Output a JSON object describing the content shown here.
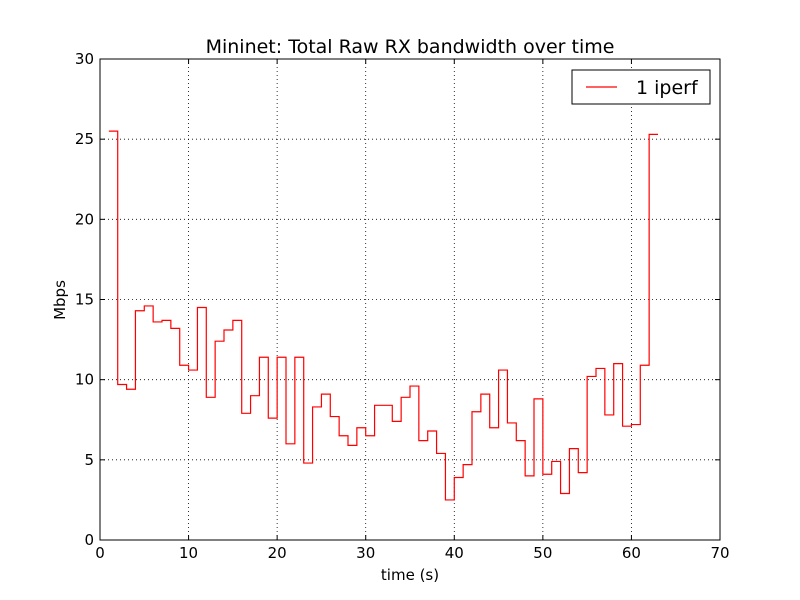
{
  "chart_data": {
    "type": "line",
    "style": "step",
    "title": "Mininet: Total Raw RX bandwidth over time",
    "xlabel": "time (s)",
    "ylabel": "Mbps",
    "xlim": [
      0,
      70
    ],
    "ylim": [
      0,
      30
    ],
    "xticks": [
      0,
      10,
      20,
      30,
      40,
      50,
      60,
      70
    ],
    "yticks": [
      0,
      5,
      10,
      15,
      20,
      25,
      30
    ],
    "grid": true,
    "legend_position": "upper-right",
    "series": [
      {
        "name": "1 iperf",
        "color": "#ff0000",
        "x": [
          1,
          2,
          3,
          4,
          5,
          6,
          7,
          8,
          9,
          10,
          11,
          12,
          13,
          14,
          15,
          16,
          17,
          18,
          19,
          20,
          21,
          22,
          23,
          24,
          25,
          26,
          27,
          28,
          29,
          30,
          31,
          32,
          33,
          34,
          35,
          36,
          37,
          38,
          39,
          40,
          41,
          42,
          43,
          44,
          45,
          46,
          47,
          48,
          49,
          50,
          51,
          52,
          53,
          54,
          55,
          56,
          57,
          58,
          59,
          60,
          61,
          62,
          63
        ],
        "y": [
          25.5,
          9.7,
          9.4,
          14.3,
          14.6,
          13.6,
          13.7,
          13.2,
          10.9,
          10.6,
          14.5,
          8.9,
          12.4,
          13.1,
          13.7,
          7.9,
          9.0,
          11.4,
          7.6,
          11.4,
          6.0,
          11.4,
          4.8,
          8.3,
          9.1,
          7.7,
          6.5,
          5.9,
          7.0,
          6.5,
          8.4,
          8.4,
          7.4,
          8.9,
          9.6,
          6.2,
          6.8,
          5.4,
          2.5,
          3.9,
          4.7,
          8.0,
          9.1,
          7.0,
          10.6,
          7.3,
          6.2,
          4.0,
          8.8,
          4.1,
          4.9,
          2.9,
          5.7,
          4.2,
          10.2,
          10.7,
          7.8,
          11.0,
          7.1,
          7.2,
          10.9,
          25.3,
          25.3
        ]
      }
    ]
  }
}
